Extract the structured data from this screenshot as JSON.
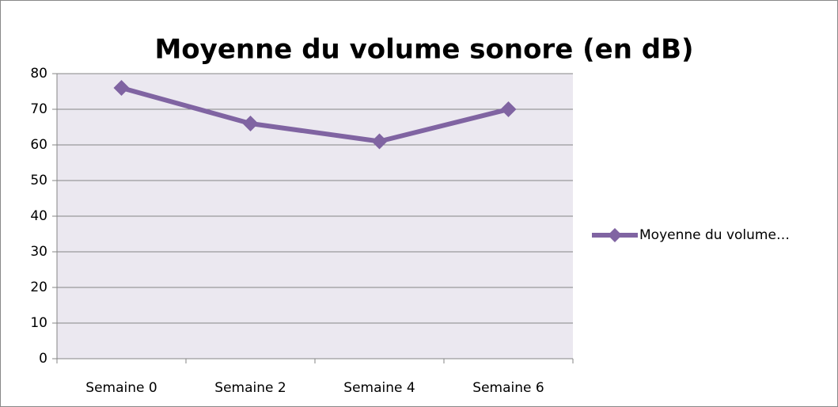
{
  "chart_data": {
    "type": "line",
    "title": "Moyenne du volume sonore (en dB)",
    "categories": [
      "Semaine 0",
      "Semaine 2",
      "Semaine 4",
      "Semaine 6"
    ],
    "series": [
      {
        "name": "Moyenne du volume…",
        "color": "#8064a2",
        "values": [
          76,
          66,
          61,
          70
        ]
      }
    ],
    "ylim": [
      0,
      80
    ],
    "yticks": [
      0,
      10,
      20,
      30,
      40,
      50,
      60,
      70,
      80
    ],
    "grid": true,
    "legend": "right"
  }
}
